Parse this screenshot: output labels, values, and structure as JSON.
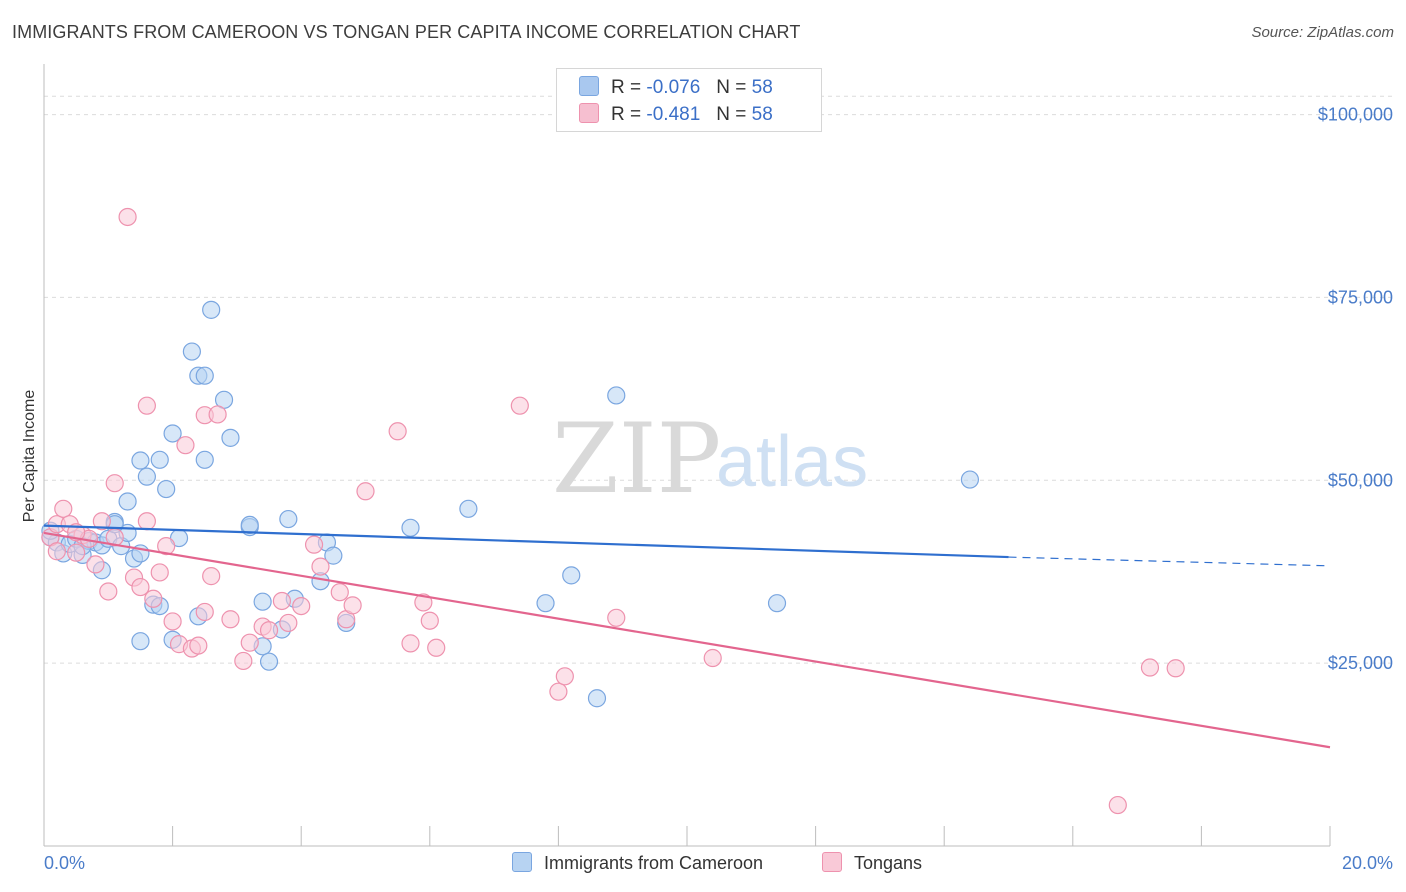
{
  "title": "IMMIGRANTS FROM CAMEROON VS TONGAN PER CAPITA INCOME CORRELATION CHART",
  "source": "Source: ZipAtlas.com",
  "watermark": {
    "zip": "ZIP",
    "atlas": "atlas"
  },
  "legend": {
    "rows": [
      {
        "r_label": "R =",
        "r_value": "-0.076",
        "n_label": "N =",
        "n_value": "58",
        "color": "#a9c8ef",
        "border": "#7aa6e0"
      },
      {
        "r_label": "R =",
        "r_value": "-0.481",
        "n_label": "N =",
        "n_value": "58",
        "color": "#f6bfd0",
        "border": "#ee92ae"
      }
    ]
  },
  "bottom_legend": [
    {
      "label": "Immigrants from Cameroon",
      "color": "#b7d3f2",
      "border": "#7aa6e0"
    },
    {
      "label": "Tongans",
      "color": "#f9c9d7",
      "border": "#ee92ae"
    }
  ],
  "chart_data": {
    "type": "scatter",
    "xlabel": "",
    "ylabel": "Per Capita Income",
    "xlim": [
      0.0,
      20.0
    ],
    "ylim": [
      0,
      105000
    ],
    "x_tick_labels": [
      "0.0%",
      "20.0%"
    ],
    "y_ticks": [
      25000,
      50000,
      75000,
      100000
    ],
    "y_tick_labels": [
      "$25,000",
      "$50,000",
      "$75,000",
      "$100,000"
    ],
    "grid": true,
    "series": [
      {
        "name": "Immigrants from Cameroon",
        "color": "#7aa6e0",
        "fill": "#b7d3f2",
        "line_color": "#2f6fcf",
        "trend": {
          "x": [
            0.0,
            15.0
          ],
          "y": [
            43800,
            39500
          ],
          "dashed_to_x": 20.0,
          "dashed_to_y": 38300
        },
        "points": [
          [
            0.1,
            42200
          ],
          [
            0.2,
            41500
          ],
          [
            0.3,
            40000
          ],
          [
            0.4,
            41300
          ],
          [
            0.5,
            42000
          ],
          [
            0.6,
            39800
          ],
          [
            0.7,
            41700
          ],
          [
            0.8,
            41500
          ],
          [
            0.9,
            41100
          ],
          [
            1.0,
            42000
          ],
          [
            1.1,
            44300
          ],
          [
            0.9,
            37700
          ],
          [
            1.2,
            41000
          ],
          [
            1.3,
            42800
          ],
          [
            1.1,
            44000
          ],
          [
            1.4,
            39300
          ],
          [
            1.5,
            40000
          ],
          [
            1.3,
            47100
          ],
          [
            1.5,
            28000
          ],
          [
            1.5,
            52700
          ],
          [
            1.6,
            50500
          ],
          [
            1.7,
            33000
          ],
          [
            1.8,
            32800
          ],
          [
            1.8,
            52800
          ],
          [
            1.9,
            48800
          ],
          [
            2.0,
            56400
          ],
          [
            2.1,
            42100
          ],
          [
            2.0,
            28200
          ],
          [
            2.3,
            67600
          ],
          [
            2.4,
            64300
          ],
          [
            2.5,
            64300
          ],
          [
            2.5,
            52800
          ],
          [
            2.6,
            73300
          ],
          [
            2.8,
            61000
          ],
          [
            2.9,
            55800
          ],
          [
            2.4,
            31400
          ],
          [
            3.2,
            43600
          ],
          [
            3.2,
            43900
          ],
          [
            3.4,
            33400
          ],
          [
            3.4,
            27300
          ],
          [
            3.5,
            25200
          ],
          [
            3.7,
            29600
          ],
          [
            3.8,
            44700
          ],
          [
            3.9,
            33800
          ],
          [
            4.3,
            36200
          ],
          [
            4.4,
            41500
          ],
          [
            4.5,
            39700
          ],
          [
            4.7,
            30500
          ],
          [
            5.7,
            43500
          ],
          [
            6.6,
            46100
          ],
          [
            7.8,
            33200
          ],
          [
            8.2,
            37000
          ],
          [
            8.6,
            20200
          ],
          [
            8.9,
            61600
          ],
          [
            11.4,
            33200
          ],
          [
            14.4,
            50100
          ],
          [
            0.1,
            43100
          ],
          [
            0.6,
            41000
          ]
        ]
      },
      {
        "name": "Tongans",
        "color": "#ee92ae",
        "fill": "#f9c9d7",
        "line_color": "#e3658e",
        "trend": {
          "x": [
            0.0,
            20.0
          ],
          "y": [
            42800,
            13500
          ]
        },
        "points": [
          [
            0.1,
            42200
          ],
          [
            0.2,
            44000
          ],
          [
            0.3,
            46100
          ],
          [
            0.4,
            44000
          ],
          [
            0.5,
            40100
          ],
          [
            0.6,
            42500
          ],
          [
            0.7,
            42000
          ],
          [
            0.8,
            38500
          ],
          [
            0.9,
            44400
          ],
          [
            1.0,
            34800
          ],
          [
            1.1,
            42200
          ],
          [
            1.1,
            49600
          ],
          [
            1.3,
            86000
          ],
          [
            1.4,
            36700
          ],
          [
            1.5,
            35400
          ],
          [
            1.6,
            44400
          ],
          [
            1.6,
            60200
          ],
          [
            1.7,
            33800
          ],
          [
            1.8,
            37400
          ],
          [
            1.9,
            41000
          ],
          [
            2.0,
            30700
          ],
          [
            2.1,
            27600
          ],
          [
            2.2,
            54800
          ],
          [
            2.3,
            27000
          ],
          [
            2.4,
            27400
          ],
          [
            2.5,
            32000
          ],
          [
            2.5,
            58900
          ],
          [
            2.6,
            36900
          ],
          [
            2.7,
            59000
          ],
          [
            2.9,
            31000
          ],
          [
            3.1,
            25300
          ],
          [
            3.2,
            27800
          ],
          [
            3.4,
            30000
          ],
          [
            3.5,
            29500
          ],
          [
            3.7,
            33500
          ],
          [
            3.8,
            30500
          ],
          [
            4.0,
            32800
          ],
          [
            4.2,
            41200
          ],
          [
            4.3,
            38200
          ],
          [
            4.6,
            34700
          ],
          [
            4.7,
            31000
          ],
          [
            4.8,
            32900
          ],
          [
            5.0,
            48500
          ],
          [
            5.5,
            56700
          ],
          [
            5.7,
            27700
          ],
          [
            5.9,
            33300
          ],
          [
            6.0,
            30800
          ],
          [
            6.1,
            27100
          ],
          [
            7.4,
            60200
          ],
          [
            8.0,
            21100
          ],
          [
            8.1,
            23200
          ],
          [
            8.9,
            31200
          ],
          [
            10.4,
            25700
          ],
          [
            16.7,
            5600
          ],
          [
            17.2,
            24400
          ],
          [
            17.6,
            24300
          ],
          [
            0.2,
            40300
          ],
          [
            0.5,
            42900
          ]
        ]
      }
    ]
  }
}
